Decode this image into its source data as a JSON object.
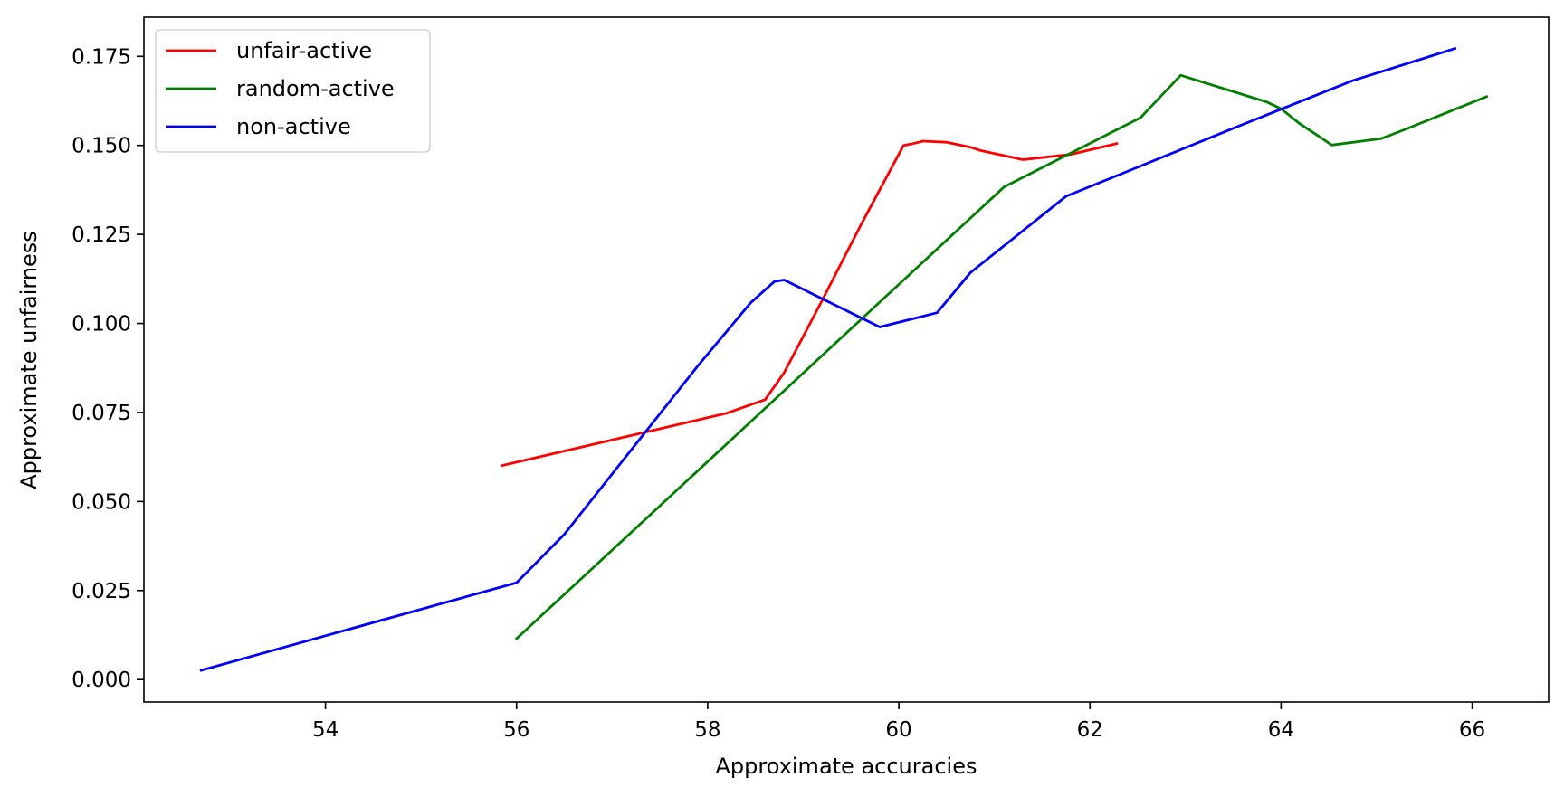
{
  "chart_data": {
    "type": "line",
    "title": "",
    "xlabel": "Approximate accuracies",
    "ylabel": "Approximate unfairness",
    "xlim": [
      52.1,
      66.8
    ],
    "ylim": [
      -0.0063,
      0.186
    ],
    "xticks": [
      54,
      56,
      58,
      60,
      62,
      64,
      66
    ],
    "yticks": [
      0.0,
      0.025,
      0.05,
      0.075,
      0.1,
      0.125,
      0.15,
      0.175
    ],
    "xtick_labels": [
      "54",
      "56",
      "58",
      "60",
      "62",
      "64",
      "66"
    ],
    "ytick_labels": [
      "0.000",
      "0.025",
      "0.050",
      "0.075",
      "0.100",
      "0.125",
      "0.150",
      "0.175"
    ],
    "grid": false,
    "legend_position": "upper-left",
    "series": [
      {
        "name": "unfair-active",
        "color": "#ff0000",
        "x": [
          55.85,
          58.2,
          58.6,
          58.8,
          59.2,
          59.6,
          60.05,
          60.15,
          60.25,
          60.5,
          60.75,
          60.85,
          61.3,
          61.8,
          62.28
        ],
        "y": [
          0.0601,
          0.0748,
          0.0786,
          0.0862,
          0.1066,
          0.1275,
          0.15,
          0.1505,
          0.1512,
          0.1509,
          0.1495,
          0.1486,
          0.146,
          0.1475,
          0.1505
        ]
      },
      {
        "name": "random-active",
        "color": "#008000",
        "x": [
          56.0,
          61.1,
          62.53,
          62.95,
          63.85,
          64.0,
          64.2,
          64.4,
          64.53,
          65.05,
          65.3,
          66.15
        ],
        "y": [
          0.0115,
          0.1383,
          0.1578,
          0.1697,
          0.1622,
          0.1603,
          0.156,
          0.1525,
          0.1501,
          0.1519,
          0.1545,
          0.1637
        ]
      },
      {
        "name": "non-active",
        "color": "#0000ff",
        "x": [
          52.7,
          56.0,
          56.5,
          57.9,
          58.45,
          58.7,
          58.8,
          59.8,
          60.4,
          60.75,
          61.75,
          63.5,
          64.75,
          65.82
        ],
        "y": [
          0.0026,
          0.0272,
          0.0408,
          0.0882,
          0.1058,
          0.1118,
          0.1122,
          0.099,
          0.103,
          0.1143,
          0.1357,
          0.1548,
          0.1682,
          0.1772
        ]
      }
    ]
  }
}
